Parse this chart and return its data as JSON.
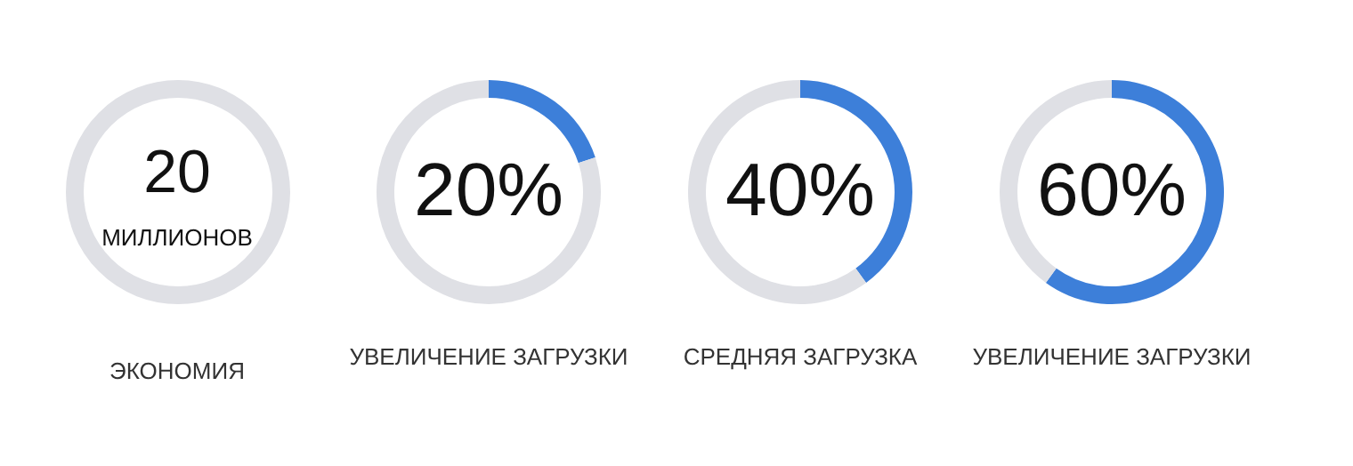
{
  "chart_data": [
    {
      "type": "other",
      "title": "ЭКОНОМИЯ",
      "annotations": [
        "20",
        "МИЛЛИОНОВ"
      ]
    },
    {
      "type": "donut",
      "title": "УВЕЛИЧЕНИЕ ЗАГРУЗКИ",
      "categories": [
        null,
        null
      ],
      "values": [
        20,
        80
      ],
      "colors": [
        "#3d7fd9",
        "#dfe0e5"
      ],
      "value_labels": [
        "20%",
        null
      ]
    },
    {
      "type": "donut",
      "title": "СРЕДНЯЯ ЗАГРУЗКА",
      "categories": [
        null,
        null
      ],
      "values": [
        40,
        60
      ],
      "colors": [
        "#3d7fd9",
        "#dfe0e5"
      ],
      "value_labels": [
        "40%",
        null
      ]
    },
    {
      "type": "donut",
      "title": "УВЕЛИЧЕНИЕ ЗАГРУЗКИ",
      "categories": [
        null,
        null
      ],
      "values": [
        60,
        40
      ],
      "colors": [
        "#3d7fd9",
        "#dfe0e5"
      ],
      "value_labels": [
        "60%",
        null
      ]
    }
  ]
}
